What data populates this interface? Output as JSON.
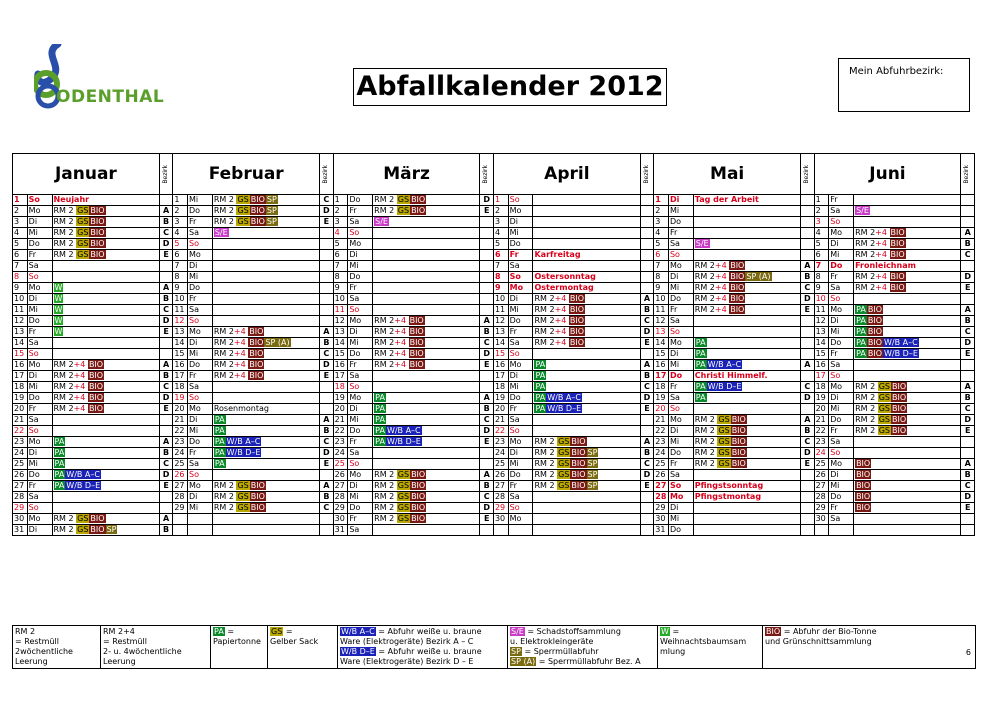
{
  "logo": {
    "text": "ODENTHAL"
  },
  "title": "Abfallkalender 2012",
  "bezirk_box": "Mein Abfuhrbezirk:",
  "bezirk_label": "Bezirk",
  "months": [
    {
      "name": "Januar",
      "days": [
        [
          "1",
          "So",
          "Neujahr",
          "",
          "red",
          "bold"
        ],
        [
          "2",
          "Mo",
          "RM2GSBIO",
          "A"
        ],
        [
          "3",
          "Di",
          "RM2GSBIO",
          "B"
        ],
        [
          "4",
          "Mi",
          "RM2GSBIO",
          "C"
        ],
        [
          "5",
          "Do",
          "RM2GSBIO",
          "D"
        ],
        [
          "6",
          "Fr",
          "RM2GSBIO",
          "E"
        ],
        [
          "7",
          "Sa",
          "",
          ""
        ],
        [
          "8",
          "So",
          "",
          "",
          "red"
        ],
        [
          "9",
          "Mo",
          "W",
          "A"
        ],
        [
          "10",
          "Di",
          "W",
          "B"
        ],
        [
          "11",
          "Mi",
          "W",
          "C"
        ],
        [
          "12",
          "Do",
          "W",
          "D"
        ],
        [
          "13",
          "Fr",
          "W",
          "E"
        ],
        [
          "14",
          "Sa",
          "",
          ""
        ],
        [
          "15",
          "So",
          "",
          "",
          "red"
        ],
        [
          "16",
          "Mo",
          "RM24BIO",
          "A"
        ],
        [
          "17",
          "Di",
          "RM24BIO",
          "B"
        ],
        [
          "18",
          "Mi",
          "RM24BIO",
          "C"
        ],
        [
          "19",
          "Do",
          "RM24BIO",
          "D"
        ],
        [
          "20",
          "Fr",
          "RM24BIO",
          "E"
        ],
        [
          "21",
          "Sa",
          "",
          ""
        ],
        [
          "22",
          "So",
          "",
          "",
          "red"
        ],
        [
          "23",
          "Mo",
          "PA",
          "A"
        ],
        [
          "24",
          "Di",
          "PA",
          "B"
        ],
        [
          "25",
          "Mi",
          "PA",
          "C"
        ],
        [
          "26",
          "Do",
          "PAWBAC",
          "D"
        ],
        [
          "27",
          "Fr",
          "PAWBDE",
          "E"
        ],
        [
          "28",
          "Sa",
          "",
          ""
        ],
        [
          "29",
          "So",
          "",
          "",
          "red"
        ],
        [
          "30",
          "Mo",
          "RM2GSBIO",
          "A"
        ],
        [
          "31",
          "Di",
          "RM2GSBIOSP",
          "B"
        ]
      ]
    },
    {
      "name": "Februar",
      "days": [
        [
          "1",
          "Mi",
          "RM2GSBIOSP",
          "C"
        ],
        [
          "2",
          "Do",
          "RM2GSBIOSP",
          "D"
        ],
        [
          "3",
          "Fr",
          "RM2GSBIOSP",
          "E"
        ],
        [
          "4",
          "Sa",
          "SE",
          ""
        ],
        [
          "5",
          "So",
          "",
          "",
          "red"
        ],
        [
          "6",
          "Mo",
          "",
          ""
        ],
        [
          "7",
          "Di",
          "",
          ""
        ],
        [
          "8",
          "Mi",
          "",
          ""
        ],
        [
          "9",
          "Do",
          "",
          ""
        ],
        [
          "10",
          "Fr",
          "",
          ""
        ],
        [
          "11",
          "Sa",
          "",
          ""
        ],
        [
          "12",
          "So",
          "",
          "",
          "red"
        ],
        [
          "13",
          "Mo",
          "RM24BIO",
          "A"
        ],
        [
          "14",
          "Di",
          "RM24BIOSPA",
          "B"
        ],
        [
          "15",
          "Mi",
          "RM24BIO",
          "C"
        ],
        [
          "16",
          "Do",
          "RM24BIO",
          "D"
        ],
        [
          "17",
          "Fr",
          "RM24BIO",
          "E"
        ],
        [
          "18",
          "Sa",
          "",
          ""
        ],
        [
          "19",
          "So",
          "",
          "",
          "red"
        ],
        [
          "20",
          "Mo",
          "Rosenmontag",
          ""
        ],
        [
          "21",
          "Di",
          "PA",
          "A"
        ],
        [
          "22",
          "Mi",
          "PA",
          "B"
        ],
        [
          "23",
          "Do",
          "PAWBAC",
          "C"
        ],
        [
          "24",
          "Fr",
          "PAWBDE",
          "D"
        ],
        [
          "25",
          "Sa",
          "PA",
          "E"
        ],
        [
          "26",
          "So",
          "",
          "",
          "red"
        ],
        [
          "27",
          "Mo",
          "RM2GSBIO",
          "A"
        ],
        [
          "28",
          "Di",
          "RM2GSBIO",
          "B"
        ],
        [
          "29",
          "Mi",
          "RM2GSBIO",
          "C"
        ]
      ]
    },
    {
      "name": "März",
      "days": [
        [
          "1",
          "Do",
          "RM2GSBIO",
          "D"
        ],
        [
          "2",
          "Fr",
          "RM2GSBIO",
          "E"
        ],
        [
          "3",
          "Sa",
          "SE",
          ""
        ],
        [
          "4",
          "So",
          "",
          "",
          "red"
        ],
        [
          "5",
          "Mo",
          "",
          ""
        ],
        [
          "6",
          "Di",
          "",
          ""
        ],
        [
          "7",
          "Mi",
          "",
          ""
        ],
        [
          "8",
          "Do",
          "",
          ""
        ],
        [
          "9",
          "Fr",
          "",
          ""
        ],
        [
          "10",
          "Sa",
          "",
          ""
        ],
        [
          "11",
          "So",
          "",
          "",
          "red"
        ],
        [
          "12",
          "Mo",
          "RM24BIO",
          "A"
        ],
        [
          "13",
          "Di",
          "RM24BIO",
          "B"
        ],
        [
          "14",
          "Mi",
          "RM24BIO",
          "C"
        ],
        [
          "15",
          "Do",
          "RM24BIO",
          "D"
        ],
        [
          "16",
          "Fr",
          "RM24BIO",
          "E"
        ],
        [
          "17",
          "Sa",
          "",
          ""
        ],
        [
          "18",
          "So",
          "",
          "",
          "red"
        ],
        [
          "19",
          "Mo",
          "PA",
          "A"
        ],
        [
          "20",
          "Di",
          "PA",
          "B"
        ],
        [
          "21",
          "Mi",
          "PA",
          "C"
        ],
        [
          "22",
          "Do",
          "PAWBAC",
          "D"
        ],
        [
          "23",
          "Fr",
          "PAWBDE",
          "E"
        ],
        [
          "24",
          "Sa",
          "",
          ""
        ],
        [
          "25",
          "So",
          "",
          "",
          "red"
        ],
        [
          "26",
          "Mo",
          "RM2GSBIO",
          "A"
        ],
        [
          "27",
          "Di",
          "RM2GSBIO",
          "B"
        ],
        [
          "28",
          "Mi",
          "RM2GSBIO",
          "C"
        ],
        [
          "29",
          "Do",
          "RM2GSBIO",
          "D"
        ],
        [
          "30",
          "Fr",
          "RM2GSBIO",
          "E"
        ],
        [
          "31",
          "Sa",
          "",
          ""
        ]
      ]
    },
    {
      "name": "April",
      "days": [
        [
          "1",
          "So",
          "",
          "",
          "red"
        ],
        [
          "2",
          "Mo",
          "",
          ""
        ],
        [
          "3",
          "Di",
          "",
          ""
        ],
        [
          "4",
          "Mi",
          "",
          ""
        ],
        [
          "5",
          "Do",
          "",
          ""
        ],
        [
          "6",
          "Fr",
          "Karfreitag",
          "",
          "red",
          "bold"
        ],
        [
          "7",
          "Sa",
          "",
          ""
        ],
        [
          "8",
          "So",
          "Ostersonntag",
          "",
          "red",
          "bold"
        ],
        [
          "9",
          "Mo",
          "Ostermontag",
          "",
          "red",
          "bold"
        ],
        [
          "10",
          "Di",
          "RM24BIO",
          "A"
        ],
        [
          "11",
          "Mi",
          "RM24BIO",
          "B"
        ],
        [
          "12",
          "Do",
          "RM24BIO",
          "C"
        ],
        [
          "13",
          "Fr",
          "RM24BIO",
          "D"
        ],
        [
          "14",
          "Sa",
          "RM24BIO",
          "E"
        ],
        [
          "15",
          "So",
          "",
          "",
          "red"
        ],
        [
          "16",
          "Mo",
          "PA",
          "A"
        ],
        [
          "17",
          "Di",
          "PA",
          "B"
        ],
        [
          "18",
          "Mi",
          "PA",
          "C"
        ],
        [
          "19",
          "Do",
          "PAWBAC",
          "D"
        ],
        [
          "20",
          "Fr",
          "PAWBDE",
          "E"
        ],
        [
          "21",
          "Sa",
          "",
          ""
        ],
        [
          "22",
          "So",
          "",
          "",
          "red"
        ],
        [
          "23",
          "Mo",
          "RM2GSBIO",
          "A"
        ],
        [
          "24",
          "Di",
          "RM2GSBIOSP",
          "B"
        ],
        [
          "25",
          "Mi",
          "RM2GSBIOSP",
          "C"
        ],
        [
          "26",
          "Do",
          "RM2GSBIOSP",
          "D"
        ],
        [
          "27",
          "Fr",
          "RM2GSBIOSP",
          "E"
        ],
        [
          "28",
          "Sa",
          "",
          ""
        ],
        [
          "29",
          "So",
          "",
          "",
          "red"
        ],
        [
          "30",
          "Mo",
          "",
          ""
        ]
      ]
    },
    {
      "name": "Mai",
      "days": [
        [
          "1",
          "Di",
          "Tag der Arbeit",
          "",
          "red",
          "bold"
        ],
        [
          "2",
          "Mi",
          "",
          ""
        ],
        [
          "3",
          "Do",
          "",
          ""
        ],
        [
          "4",
          "Fr",
          "",
          ""
        ],
        [
          "5",
          "Sa",
          "SE",
          ""
        ],
        [
          "6",
          "So",
          "",
          "",
          "red"
        ],
        [
          "7",
          "Mo",
          "RM24BIO",
          "A"
        ],
        [
          "8",
          "Di",
          "RM24BIOSPA",
          "B"
        ],
        [
          "9",
          "Mi",
          "RM24BIO",
          "C"
        ],
        [
          "10",
          "Do",
          "RM24BIO",
          "D"
        ],
        [
          "11",
          "Fr",
          "RM24BIO",
          "E"
        ],
        [
          "12",
          "Sa",
          "",
          ""
        ],
        [
          "13",
          "So",
          "",
          "",
          "red"
        ],
        [
          "14",
          "Mo",
          "PA",
          ""
        ],
        [
          "15",
          "Di",
          "PA",
          ""
        ],
        [
          "16",
          "Mi",
          "PAWBAC",
          "A"
        ],
        [
          "17",
          "Do",
          "Christi Himmelf.",
          "",
          "red",
          "bold"
        ],
        [
          "18",
          "Fr",
          "PAWBDE",
          "C"
        ],
        [
          "19",
          "Sa",
          "PA",
          "D"
        ],
        [
          "20",
          "So",
          "",
          "",
          "red"
        ],
        [
          "21",
          "Mo",
          "RM2GSBIO",
          "A"
        ],
        [
          "22",
          "Di",
          "RM2GSBIO",
          "B"
        ],
        [
          "23",
          "Mi",
          "RM2GSBIO",
          "C"
        ],
        [
          "24",
          "Do",
          "RM2GSBIO",
          "D"
        ],
        [
          "25",
          "Fr",
          "RM2GSBIO",
          "E"
        ],
        [
          "26",
          "Sa",
          "",
          ""
        ],
        [
          "27",
          "So",
          "Pfingstsonntag",
          "",
          "red",
          "bold"
        ],
        [
          "28",
          "Mo",
          "Pfingstmontag",
          "",
          "red",
          "bold"
        ],
        [
          "29",
          "Di",
          "",
          ""
        ],
        [
          "30",
          "Mi",
          "",
          ""
        ],
        [
          "31",
          "Do",
          "",
          ""
        ]
      ]
    },
    {
      "name": "Juni",
      "days": [
        [
          "1",
          "Fr",
          "",
          ""
        ],
        [
          "2",
          "Sa",
          "SE",
          ""
        ],
        [
          "3",
          "So",
          "",
          "",
          "red"
        ],
        [
          "4",
          "Mo",
          "RM24BIO",
          "A"
        ],
        [
          "5",
          "Di",
          "RM24BIO",
          "B"
        ],
        [
          "6",
          "Mi",
          "RM24BIO",
          "C"
        ],
        [
          "7",
          "Do",
          "Fronleichnam",
          "",
          "red",
          "bold"
        ],
        [
          "8",
          "Fr",
          "RM24BIO",
          "D"
        ],
        [
          "9",
          "Sa",
          "RM24BIO",
          "E"
        ],
        [
          "10",
          "So",
          "",
          "",
          "red"
        ],
        [
          "11",
          "Mo",
          "PABIO",
          "A"
        ],
        [
          "12",
          "Di",
          "PABIO",
          "B"
        ],
        [
          "13",
          "Mi",
          "PABIO",
          "C"
        ],
        [
          "14",
          "Do",
          "PABIOWBAC",
          "D"
        ],
        [
          "15",
          "Fr",
          "PABIOWBDE",
          "E"
        ],
        [
          "16",
          "Sa",
          "",
          ""
        ],
        [
          "17",
          "So",
          "",
          "",
          "red"
        ],
        [
          "18",
          "Mo",
          "RM2GSBIO",
          "A"
        ],
        [
          "19",
          "Di",
          "RM2GSBIO",
          "B"
        ],
        [
          "20",
          "Mi",
          "RM2GSBIO",
          "C"
        ],
        [
          "21",
          "Do",
          "RM2GSBIO",
          "D"
        ],
        [
          "22",
          "Fr",
          "RM2GSBIO",
          "E"
        ],
        [
          "23",
          "Sa",
          "",
          ""
        ],
        [
          "24",
          "So",
          "",
          "",
          "red"
        ],
        [
          "25",
          "Mo",
          "BIO",
          "A"
        ],
        [
          "26",
          "Di",
          "BIO",
          "B"
        ],
        [
          "27",
          "Mi",
          "BIO",
          "C"
        ],
        [
          "28",
          "Do",
          "BIO",
          "D"
        ],
        [
          "29",
          "Fr",
          "BIO",
          "E"
        ],
        [
          "30",
          "Sa",
          "",
          ""
        ]
      ]
    }
  ],
  "row_bezirk": {
    "Januar": [],
    "Februar": [],
    "März": [],
    "April": [],
    "Mai": [],
    "Juni": []
  },
  "codes": {
    "RM2": "RM 2",
    "GS": "GS",
    "BIO": "BIO",
    "SP": "SP",
    "RM24": "RM 2+4",
    "SPA": "SP (A)",
    "PA": "PA",
    "WBAC": "W/B A–C",
    "WBDE": "W/B D–E",
    "SE": "S/E",
    "W": "W"
  },
  "legend": {
    "rm2": [
      "RM 2",
      "= Restmüll",
      "2wöchentliche",
      "Leerung"
    ],
    "rm24": [
      "RM 2+4",
      "= Restmüll",
      "2- u. 4wöchentliche",
      "Leerung"
    ],
    "pa": [
      "PA",
      "=",
      "Papiertonne"
    ],
    "gs": [
      "GS",
      "=",
      "Gelber Sack"
    ],
    "wbac": [
      "W/B A–C",
      "= Abfuhr weiße u. braune",
      "Ware (Elektrogeräte) Bezirk A – C"
    ],
    "wbde": [
      "W/B D–E",
      "= Abfuhr weiße u. braune",
      "Ware (Elektrogeräte) Bezirk D – E"
    ],
    "se": [
      "S/E",
      "= Schadstoffsammlung",
      "u. Elektro",
      "kleingeräte"
    ],
    "sp": [
      "SP",
      "= Sperrmüllabfuhr"
    ],
    "spa": [
      "SP (A)",
      "= Sperrmüllabfuhr Bez. A"
    ],
    "w": [
      "W",
      "=",
      "Weihnachtsbaumsam",
      "mlung"
    ],
    "bio": [
      "BIO",
      "= Abfuhr der Bio-Tonne",
      "und Grünschnittsammlung"
    ],
    "page": "6"
  }
}
